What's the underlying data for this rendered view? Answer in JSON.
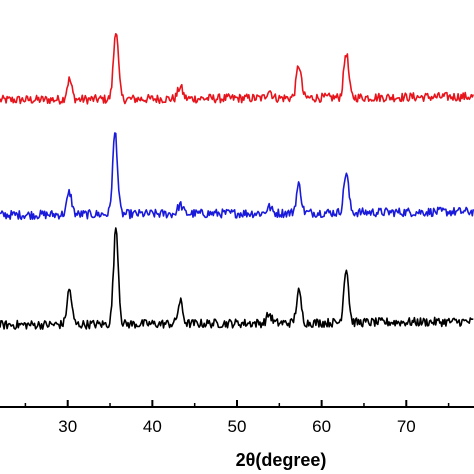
{
  "chart_data": {
    "type": "line",
    "title": "",
    "xlabel": "2θ(degree)",
    "ylabel": "",
    "xlim": [
      18,
      75
    ],
    "x_ticks": [
      30,
      40,
      50,
      60,
      70
    ],
    "y_ticks": [],
    "grid": false,
    "legend": "none",
    "series": [
      {
        "color": "#e8141c",
        "baseline": 100,
        "peaks": [
          [
            30.2,
            20
          ],
          [
            35.7,
            70
          ],
          [
            43.3,
            12
          ],
          [
            53.8,
            8
          ],
          [
            57.3,
            33
          ],
          [
            62.9,
            45
          ]
        ],
        "x": [
          18,
          29.5,
          30.2,
          31,
          35,
          35.7,
          36.5,
          42.7,
          43.3,
          44,
          53.3,
          53.8,
          54.4,
          56.8,
          57.3,
          58,
          62.3,
          62.9,
          63.6,
          75
        ],
        "offset": [
          0,
          2,
          20,
          3,
          4,
          70,
          5,
          3,
          12,
          2,
          2,
          8,
          2,
          4,
          33,
          4,
          6,
          45,
          5,
          2
        ]
      },
      {
        "color": "#1a1adb",
        "baseline": 215,
        "peaks": [
          [
            30.2,
            22
          ],
          [
            35.6,
            82
          ],
          [
            43.3,
            9
          ],
          [
            53.8,
            6
          ],
          [
            57.3,
            28
          ],
          [
            62.9,
            40
          ]
        ],
        "x": [
          18,
          29.5,
          30.2,
          31,
          35,
          35.6,
          36.5,
          42.7,
          43.3,
          44,
          53.3,
          53.8,
          54.4,
          56.8,
          57.3,
          58,
          62.3,
          62.9,
          63.6,
          75
        ],
        "offset": [
          0,
          3,
          22,
          4,
          5,
          82,
          6,
          3,
          9,
          2,
          2,
          6,
          2,
          4,
          28,
          4,
          6,
          40,
          5,
          2
        ]
      },
      {
        "color": "#000000",
        "baseline": 325,
        "peaks": [
          [
            30.2,
            35
          ],
          [
            35.7,
            97
          ],
          [
            43.3,
            22
          ],
          [
            53.8,
            9
          ],
          [
            57.3,
            31
          ],
          [
            62.9,
            55
          ]
        ],
        "x": [
          18,
          29.5,
          30.2,
          31,
          35,
          35.7,
          36.5,
          42.7,
          43.3,
          44,
          53.3,
          53.8,
          54.4,
          56.8,
          57.3,
          58,
          62.3,
          62.9,
          63.6,
          75
        ],
        "offset": [
          0,
          3,
          35,
          4,
          5,
          97,
          6,
          4,
          22,
          3,
          2,
          9,
          2,
          5,
          31,
          4,
          6,
          55,
          5,
          3
        ]
      }
    ]
  }
}
